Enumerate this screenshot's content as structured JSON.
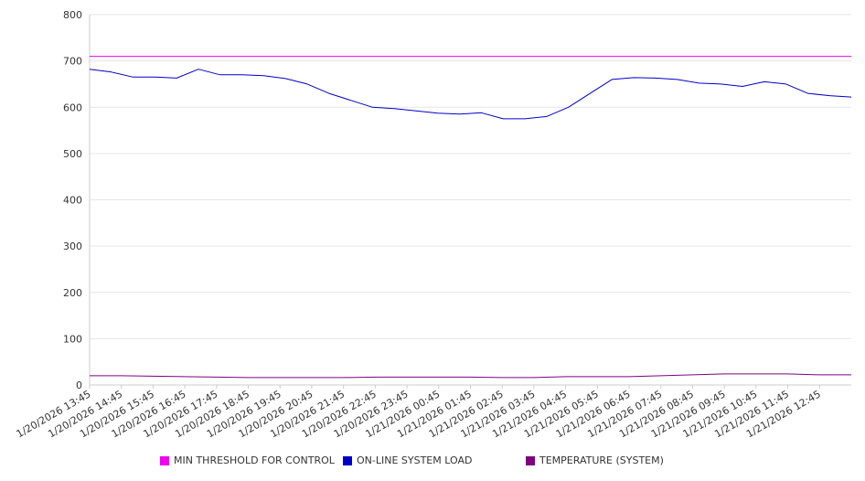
{
  "chart_data": {
    "type": "line",
    "title": "",
    "xlabel": "",
    "ylabel": "",
    "ylim": [
      0,
      800
    ],
    "yticks": [
      0,
      100,
      200,
      300,
      400,
      500,
      600,
      700,
      800
    ],
    "grid": true,
    "legend_position": "bottom",
    "x_tick_labels": [
      "1/20/2026 13:45",
      "1/20/2026 14:45",
      "1/20/2026 15:45",
      "1/20/2026 16:45",
      "1/20/2026 17:45",
      "1/20/2026 18:45",
      "1/20/2026 19:45",
      "1/20/2026 20:45",
      "1/20/2026 21:45",
      "1/20/2026 22:45",
      "1/20/2026 23:45",
      "1/21/2026 00:45",
      "1/21/2026 01:45",
      "1/21/2026 02:45",
      "1/21/2026 03:45",
      "1/21/2026 04:45",
      "1/21/2026 05:45",
      "1/21/2026 06:45",
      "1/21/2026 07:45",
      "1/21/2026 08:45",
      "1/21/2026 09:45",
      "1/21/2026 10:45",
      "1/21/2026 11:45",
      "1/21/2026 12:45"
    ],
    "x_start": "1/20/2026 13:45",
    "x_end": "1/21/2026 13:45",
    "series": [
      {
        "name": "MIN THRESHOLD FOR CONTROL",
        "color": "#ee00ee",
        "values": [
          710,
          710,
          710,
          710,
          710,
          710,
          710,
          710,
          710,
          710,
          710,
          710,
          710,
          710,
          710,
          710,
          710,
          710,
          710,
          710,
          710,
          710,
          710,
          710,
          710
        ]
      },
      {
        "name": "ON-LINE SYSTEM LOAD",
        "color": "#0000cc",
        "values": [
          682,
          676,
          665,
          665,
          663,
          682,
          670,
          670,
          668,
          662,
          650,
          630,
          615,
          600,
          597,
          592,
          587,
          585,
          588,
          575,
          575,
          580,
          600,
          630,
          660,
          664,
          663,
          660,
          652,
          650,
          645,
          655,
          650,
          630,
          625,
          622
        ]
      },
      {
        "name": "TEMPERATURE (SYSTEM)",
        "color": "#800080",
        "values": [
          20,
          20,
          19,
          18,
          17,
          16,
          16,
          16,
          16,
          17,
          17,
          17,
          17,
          16,
          16,
          18,
          18,
          18,
          20,
          22,
          24,
          24,
          24,
          22,
          22
        ]
      }
    ]
  }
}
